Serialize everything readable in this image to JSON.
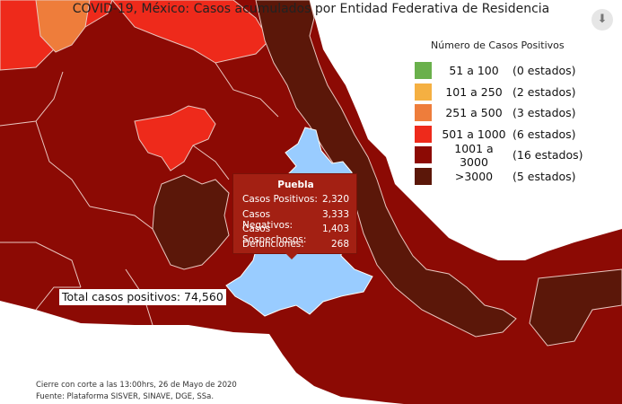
{
  "map": {
    "title": "COVID-19, México: Casos acumulados por Entidad Federativa de Residencia",
    "highlighted_state": "Puebla",
    "colors": {
      "range_51_100": "#6ab04c",
      "range_101_250": "#f5b042",
      "range_251_500": "#ee7d3b",
      "range_501_1000": "#ee2a1b",
      "range_1001_3000": "#8c0a04",
      "range_gt_3000": "#5b1709",
      "highlight": "#99ccff",
      "border": "#e9c6bf"
    }
  },
  "legend": {
    "title": "Número de Casos Positivos",
    "items": [
      {
        "range": "51 a 100",
        "count": "(0 estados)",
        "color": "#6ab04c"
      },
      {
        "range": "101 a 250",
        "count": "(2 estados)",
        "color": "#f5b042"
      },
      {
        "range": "251 a 500",
        "count": "(3 estados)",
        "color": "#ee7d3b"
      },
      {
        "range": "501 a 1000",
        "count": "(6 estados)",
        "color": "#ee2a1b"
      },
      {
        "range": "1001 a 3000",
        "count": "(16 estados)",
        "color": "#8c0a04"
      },
      {
        "range": ">3000",
        "count": "(5 estados)",
        "color": "#5b1709"
      }
    ]
  },
  "tooltip": {
    "title": "Puebla",
    "rows": [
      {
        "label": "Casos Positivos:",
        "value": "2,320"
      },
      {
        "label": "Casos Negativos:",
        "value": "3,333"
      },
      {
        "label": "Casos Sospechosos:",
        "value": "1,403"
      },
      {
        "label": "Defunciones:",
        "value": "268"
      }
    ]
  },
  "total_label": "Total casos positivos: 74,560",
  "footer": {
    "cutoff": "Cierre con corte a las 13:00hrs, 26 de Mayo de 2020",
    "source": "Fuente: Plataforma SISVER, SINAVE, DGE, SSa."
  },
  "download_icon": "download-icon"
}
